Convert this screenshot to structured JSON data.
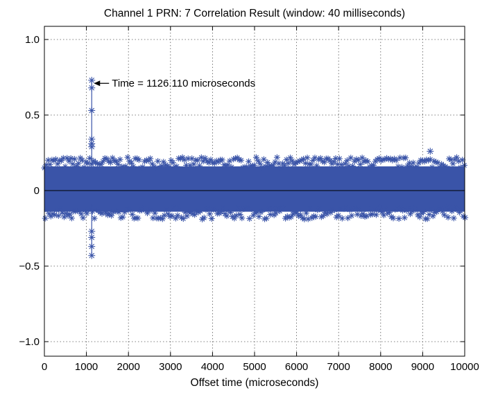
{
  "chart_data": {
    "type": "line",
    "title": "Channel 1  PRN: 7  Correlation Result  (window: 40 milliseconds)",
    "xlabel": "Offset time (microseconds)",
    "ylabel": "",
    "xlim": [
      0,
      10000
    ],
    "ylim": [
      -1.1,
      1.1
    ],
    "xticks": [
      0,
      1000,
      2000,
      3000,
      4000,
      5000,
      6000,
      7000,
      8000,
      9000,
      10000
    ],
    "xtick_labels": [
      "0",
      "1000",
      "2000",
      "3000",
      "4000",
      "5000",
      "6000",
      "7000",
      "8000",
      "9000",
      "10000"
    ],
    "yticks": [
      1.0,
      0.5,
      0,
      -0.5,
      -1.0
    ],
    "ytick_labels": [
      "1.0",
      "0.5",
      "0",
      "−0.5",
      "−1.0"
    ],
    "grid": true,
    "marker": "asterisk",
    "series_color": "#3a54a8",
    "noise_band": {
      "typical_positive_envelope": 0.2,
      "typical_negative_envelope": -0.16
    },
    "peak": {
      "x": 1126.11,
      "y_max": 0.73,
      "y_min": -0.43
    },
    "secondary_points": [
      {
        "x": 1126.11,
        "y": 0.68
      },
      {
        "x": 1126.11,
        "y": 0.53
      },
      {
        "x": 1126.11,
        "y": 0.34
      },
      {
        "x": 1126.11,
        "y": 0.31
      },
      {
        "x": 1126.11,
        "y": 0.29
      },
      {
        "x": 1126.11,
        "y": -0.27
      },
      {
        "x": 1126.11,
        "y": -0.31
      },
      {
        "x": 1126.11,
        "y": -0.37
      },
      {
        "x": 9180,
        "y": 0.26
      }
    ],
    "annotation": {
      "text": "Time = 1126.110 microseconds",
      "x": 1126.11,
      "y": 0.71
    }
  }
}
